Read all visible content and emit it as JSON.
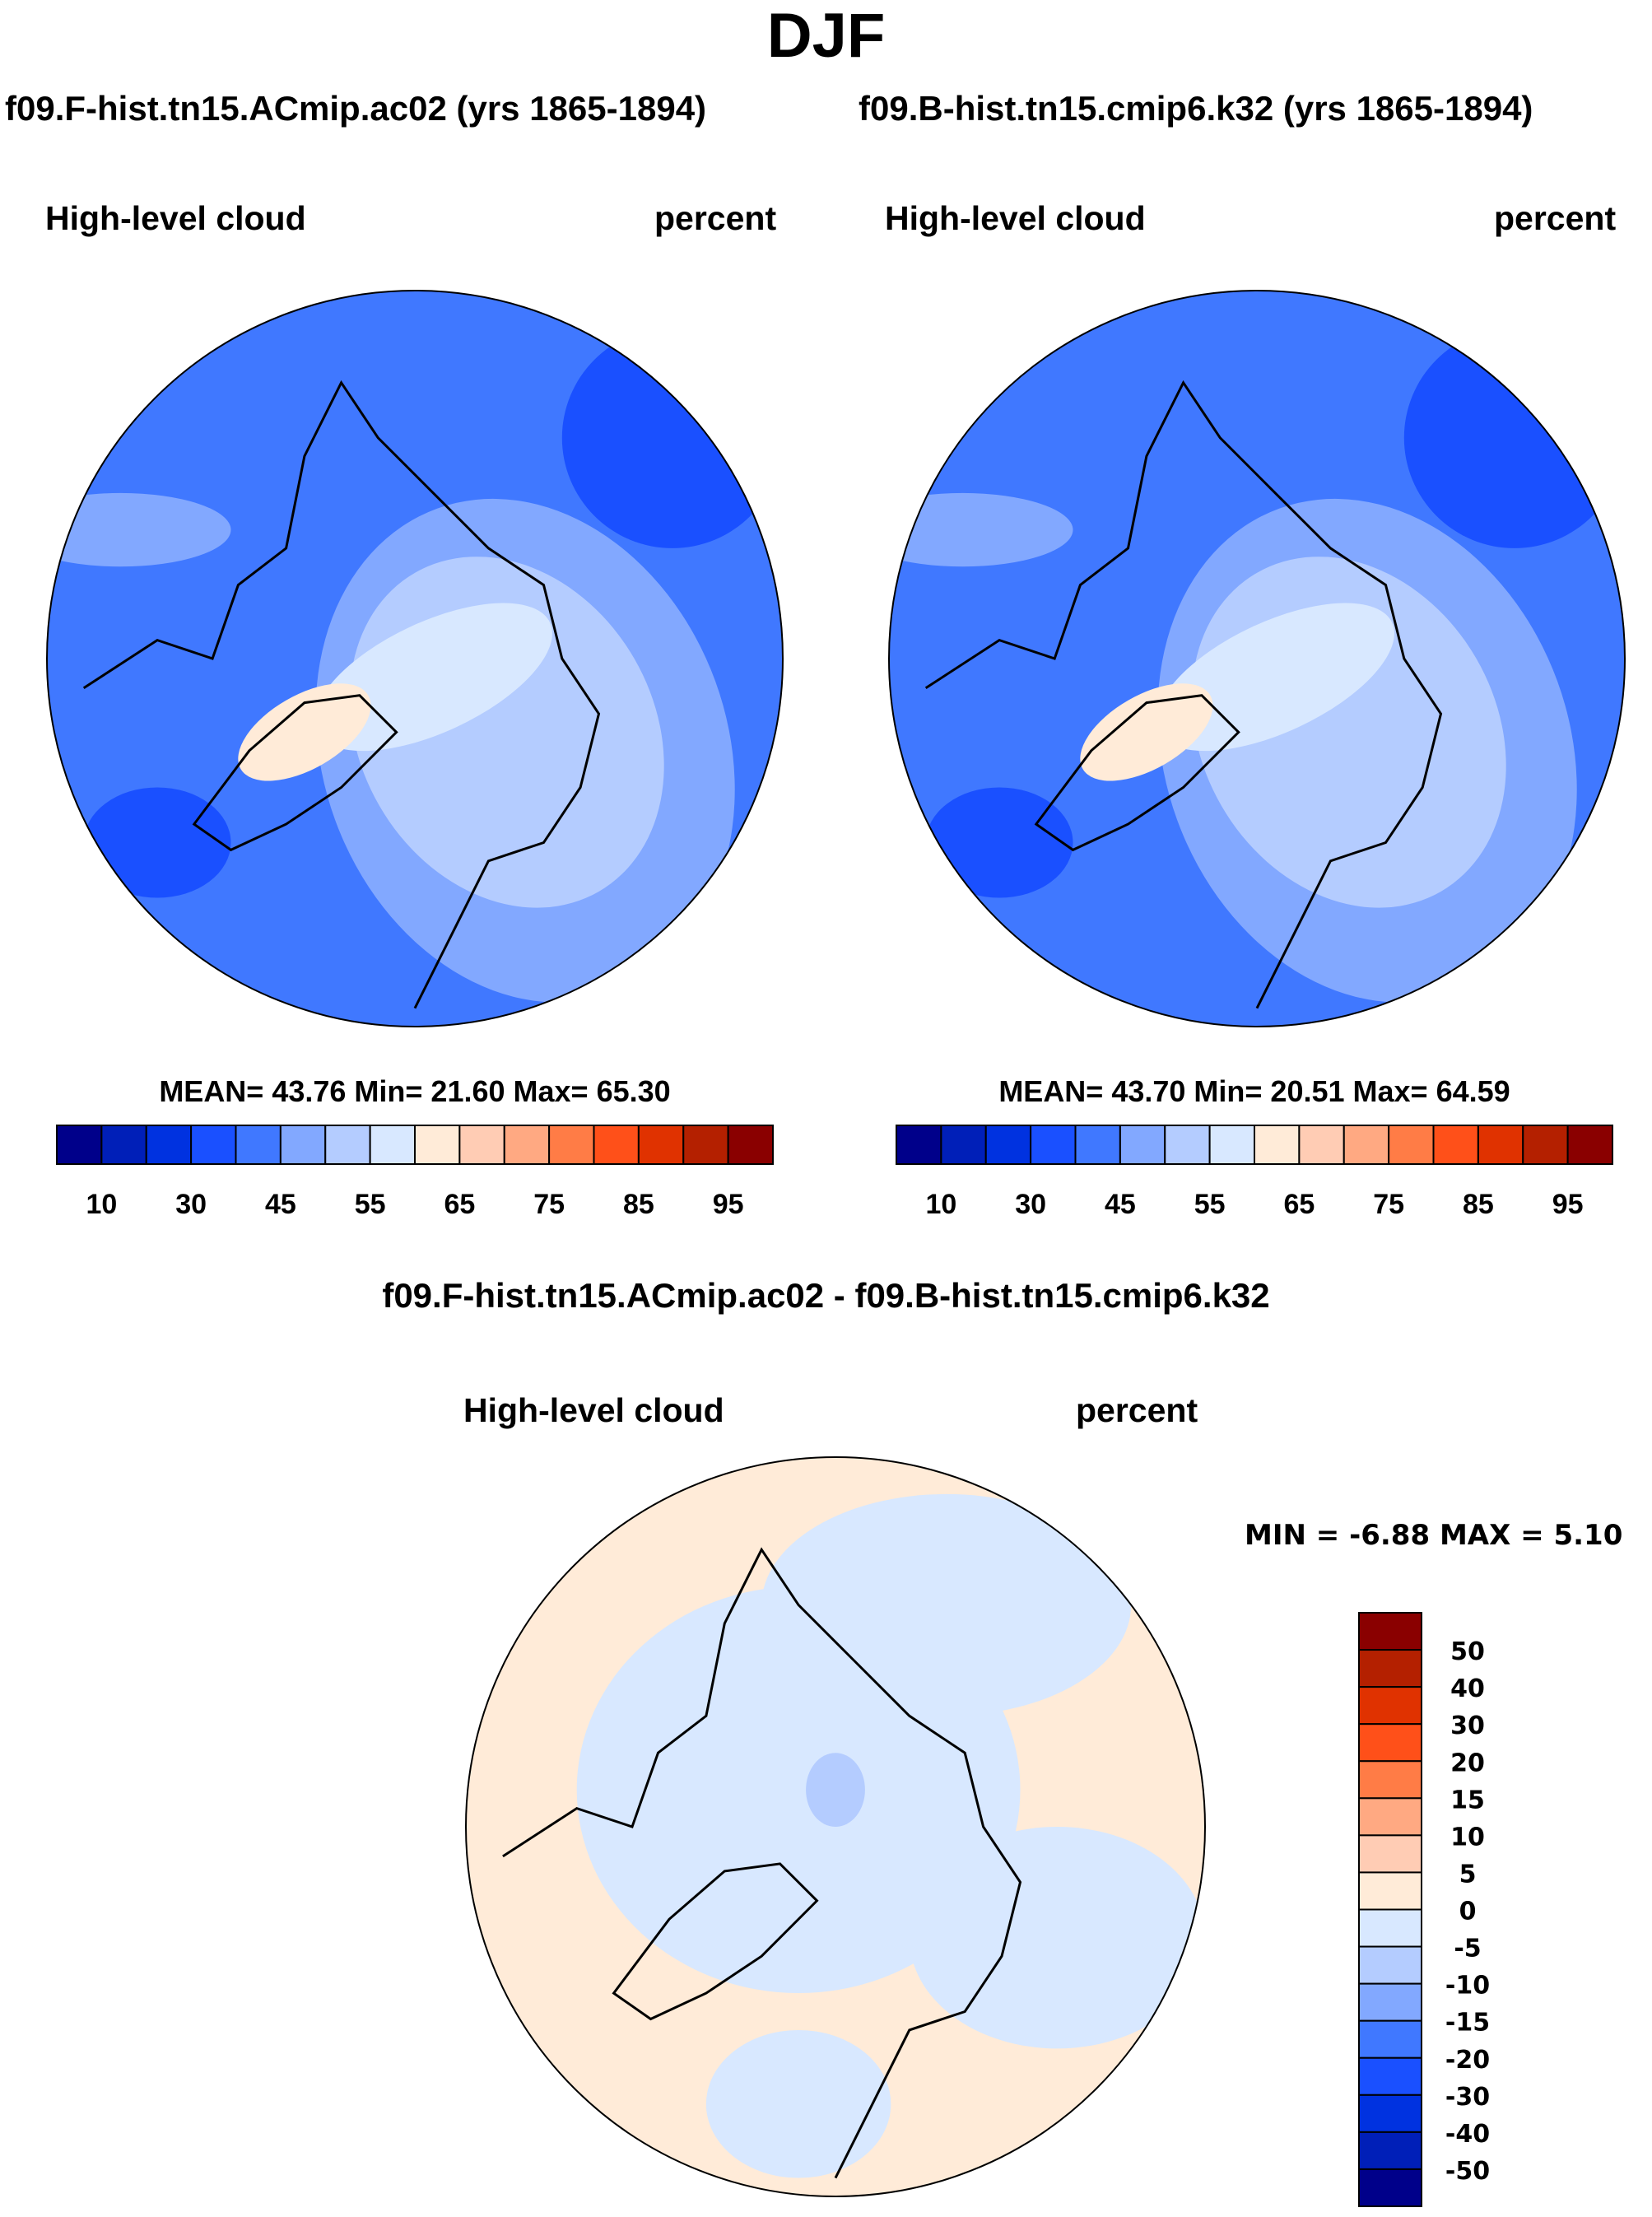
{
  "title": "DJF",
  "panels": [
    {
      "case": "f09.F-hist.tn15.ACmip.ac02 (yrs 1865-1894)",
      "left_label": "High-level cloud",
      "right_label": "percent",
      "stats": "MEAN=  43.76  Min=  21.60  Max=  65.30"
    },
    {
      "case": "f09.B-hist.tn15.cmip6.k32 (yrs 1865-1894)",
      "left_label": "High-level cloud",
      "right_label": "percent",
      "stats": "MEAN=  43.70  Min=  20.51  Max=  64.59"
    }
  ],
  "diff": {
    "case": "f09.F-hist.tn15.ACmip.ac02 - f09.B-hist.tn15.cmip6.k32",
    "left_label": "High-level cloud",
    "right_label": "percent",
    "stats": "MIN =  -6.88 MAX =   5.10"
  },
  "chart_data": [
    {
      "type": "heatmap",
      "projection": "north-polar-stereographic",
      "variable": "High-level cloud",
      "units": "percent",
      "mean": 43.76,
      "min": 21.6,
      "max": 65.3,
      "colorbar_labels": [
        "10",
        "30",
        "45",
        "55",
        "65",
        "75",
        "85",
        "95"
      ]
    },
    {
      "type": "heatmap",
      "projection": "north-polar-stereographic",
      "variable": "High-level cloud",
      "units": "percent",
      "mean": 43.7,
      "min": 20.51,
      "max": 64.59,
      "colorbar_labels": [
        "10",
        "30",
        "45",
        "55",
        "65",
        "75",
        "85",
        "95"
      ]
    },
    {
      "type": "heatmap",
      "projection": "north-polar-stereographic",
      "variable": "High-level cloud difference",
      "units": "percent",
      "min": -6.88,
      "max": 5.1,
      "colorbar_labels": [
        "50",
        "40",
        "30",
        "20",
        "15",
        "10",
        "5",
        "0",
        "-5",
        "-10",
        "-15",
        "-20",
        "-30",
        "-40",
        "-50"
      ]
    }
  ],
  "colors": [
    "#00008a",
    "#001fb8",
    "#0032e0",
    "#1a50ff",
    "#4078ff",
    "#82a8ff",
    "#b4ccff",
    "#d8e8ff",
    "#ffebd8",
    "#ffccb4",
    "#ffa982",
    "#ff7c46",
    "#ff5019",
    "#e03200",
    "#b42000",
    "#8a0000"
  ]
}
